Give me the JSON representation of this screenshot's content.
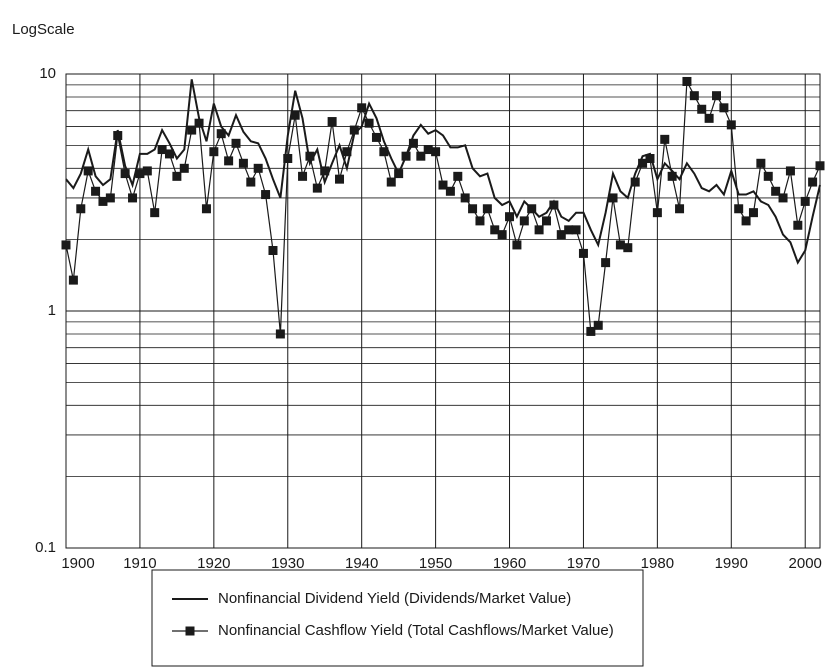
{
  "chart_data": {
    "type": "line",
    "ylabel": "LogScale",
    "log_scale": true,
    "grid": true,
    "xlim": [
      1900,
      2002
    ],
    "xticks": [
      1900,
      1910,
      1920,
      1930,
      1940,
      1950,
      1960,
      1970,
      1980,
      1990,
      2000
    ],
    "ylim": [
      0.1,
      10
    ],
    "yticks": [
      0.1,
      1,
      10
    ],
    "minor_yticks": [
      0.2,
      0.3,
      0.4,
      0.5,
      0.6,
      0.7,
      0.8,
      0.9,
      2,
      3,
      4,
      5,
      6,
      7,
      8,
      9
    ],
    "legend": "bottom",
    "x": [
      1900,
      1901,
      1902,
      1903,
      1904,
      1905,
      1906,
      1907,
      1908,
      1909,
      1910,
      1911,
      1912,
      1913,
      1914,
      1915,
      1916,
      1917,
      1918,
      1919,
      1920,
      1921,
      1922,
      1923,
      1924,
      1925,
      1926,
      1927,
      1928,
      1929,
      1930,
      1931,
      1932,
      1933,
      1934,
      1935,
      1936,
      1937,
      1938,
      1939,
      1940,
      1941,
      1942,
      1943,
      1944,
      1945,
      1946,
      1947,
      1948,
      1949,
      1950,
      1951,
      1952,
      1953,
      1954,
      1955,
      1956,
      1957,
      1958,
      1959,
      1960,
      1961,
      1962,
      1963,
      1964,
      1965,
      1966,
      1967,
      1968,
      1969,
      1970,
      1971,
      1972,
      1973,
      1974,
      1975,
      1976,
      1977,
      1978,
      1979,
      1980,
      1981,
      1982,
      1983,
      1984,
      1985,
      1986,
      1987,
      1988,
      1989,
      1990,
      1991,
      1992,
      1993,
      1994,
      1995,
      1996,
      1997,
      1998,
      1999,
      2000,
      2001,
      2002
    ],
    "series": [
      {
        "name": "Nonfinancial Dividend Yield (Dividends/Market Value)",
        "color": "#1a1a1a",
        "marker": "none",
        "values": [
          3.6,
          3.3,
          3.8,
          4.8,
          3.7,
          3.4,
          3.6,
          5.8,
          4.1,
          3.4,
          4.6,
          4.6,
          4.8,
          5.8,
          5.1,
          4.4,
          4.8,
          9.5,
          6.5,
          5.2,
          7.5,
          6.0,
          5.5,
          6.7,
          5.7,
          5.2,
          5.1,
          4.4,
          3.6,
          3.0,
          5.5,
          8.5,
          6.5,
          4.2,
          4.8,
          3.5,
          4.2,
          5.0,
          4.0,
          5.6,
          6.0,
          7.5,
          6.5,
          5.2,
          4.4,
          3.8,
          4.5,
          5.5,
          6.1,
          5.6,
          5.8,
          5.5,
          4.9,
          4.9,
          5.0,
          4.0,
          3.7,
          3.8,
          3.0,
          2.8,
          2.9,
          2.5,
          2.9,
          2.7,
          2.5,
          2.6,
          2.9,
          2.5,
          2.4,
          2.6,
          2.6,
          2.2,
          1.9,
          2.6,
          3.8,
          3.2,
          3.0,
          3.8,
          4.5,
          4.6,
          3.6,
          4.2,
          3.9,
          3.6,
          4.2,
          3.8,
          3.3,
          3.2,
          3.4,
          3.1,
          3.9,
          3.1,
          3.1,
          3.2,
          2.9,
          2.8,
          2.5,
          2.1,
          1.95,
          1.6,
          1.8,
          2.5,
          3.4
        ]
      },
      {
        "name": "Nonfinancial Cashflow Yield (Total Cashflows/Market Value)",
        "color": "#1a1a1a",
        "marker": "square",
        "values": [
          1.9,
          1.35,
          2.7,
          3.9,
          3.2,
          2.9,
          3.0,
          5.5,
          3.8,
          3.0,
          3.8,
          3.9,
          2.6,
          4.8,
          4.6,
          3.7,
          4.0,
          5.8,
          6.2,
          2.7,
          4.7,
          5.6,
          4.3,
          5.1,
          4.2,
          3.5,
          4.0,
          3.1,
          1.8,
          0.8,
          4.4,
          6.7,
          3.7,
          4.5,
          3.3,
          3.9,
          6.3,
          3.6,
          4.7,
          5.8,
          7.2,
          6.2,
          5.4,
          4.7,
          3.5,
          3.8,
          4.5,
          5.1,
          4.5,
          4.8,
          4.7,
          3.4,
          3.2,
          3.7,
          3.0,
          2.7,
          2.4,
          2.7,
          2.2,
          2.1,
          2.5,
          1.9,
          2.4,
          2.7,
          2.2,
          2.4,
          2.8,
          2.1,
          2.2,
          2.2,
          1.75,
          0.82,
          0.87,
          1.6,
          3.0,
          1.9,
          1.85,
          3.5,
          4.2,
          4.4,
          2.6,
          5.3,
          3.7,
          2.7,
          9.3,
          8.1,
          7.1,
          6.5,
          8.1,
          7.2,
          6.1,
          2.7,
          2.4,
          2.6,
          4.2,
          3.7,
          3.2,
          3.0,
          3.9,
          2.3,
          2.9,
          3.5,
          4.1
        ]
      }
    ]
  }
}
